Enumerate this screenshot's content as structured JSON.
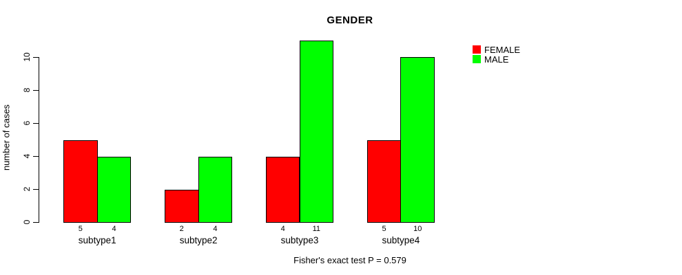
{
  "title": "GENDER",
  "ylabel": "number of cases",
  "footer": "Fisher's exact test P = 0.579",
  "legend": [
    {
      "label": "FEMALE",
      "color": "#ff0000"
    },
    {
      "label": "MALE",
      "color": "#00ff00"
    }
  ],
  "chart_data": {
    "type": "bar",
    "title": "GENDER",
    "xlabel": "",
    "ylabel": "number of cases",
    "categories": [
      "subtype1",
      "subtype2",
      "subtype3",
      "subtype4"
    ],
    "series": [
      {
        "name": "FEMALE",
        "color": "#ff0000",
        "values": [
          5,
          2,
          4,
          5
        ]
      },
      {
        "name": "MALE",
        "color": "#00ff00",
        "values": [
          4,
          4,
          11,
          10
        ]
      }
    ],
    "ylim": [
      0,
      11
    ],
    "yticks": [
      0,
      2,
      4,
      6,
      8,
      10
    ],
    "bar_value_labels_shown": true,
    "grid": false,
    "legend_position": "top-right-inside",
    "annotation": "Fisher's exact test P = 0.579"
  }
}
